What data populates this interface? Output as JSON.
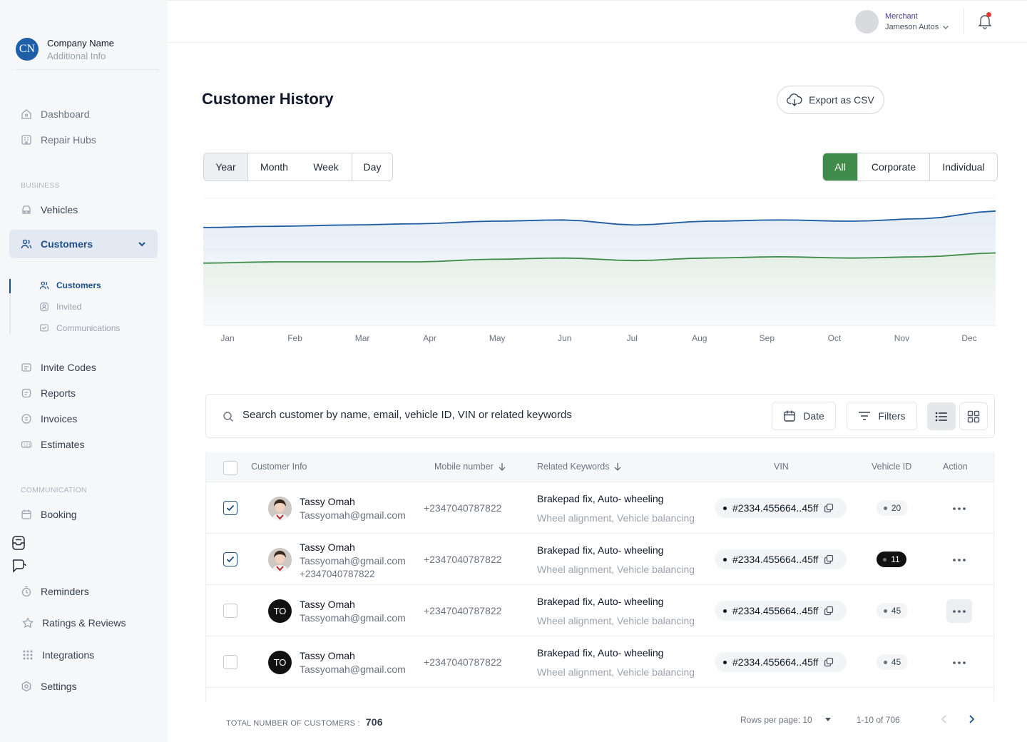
{
  "company": {
    "initials": "CN",
    "name": "Company Name",
    "info": "Additional Info"
  },
  "sidebar": {
    "top": [
      {
        "label": "Dashboard"
      },
      {
        "label": "Repair Hubs"
      }
    ],
    "business_heading": "BUSINESS",
    "business": [
      {
        "label": "Vehicles"
      },
      {
        "label": "Customers"
      }
    ],
    "customers_sub": [
      {
        "label": "Customers"
      },
      {
        "label": "Invited"
      },
      {
        "label": "Communications"
      }
    ],
    "more": [
      {
        "label": "Invite Codes"
      },
      {
        "label": "Reports"
      },
      {
        "label": "Invoices"
      },
      {
        "label": "Estimates"
      }
    ],
    "communication_heading": "COMMUNICATION",
    "communication": [
      {
        "label": "Booking"
      },
      {
        "label": "Reminders"
      },
      {
        "label": "Ratings & Reviews"
      },
      {
        "label": "Integrations"
      },
      {
        "label": "Settings"
      }
    ]
  },
  "header": {
    "role": "Merchant",
    "merchant_name": "Jameson Autos"
  },
  "page": {
    "title": "Customer History",
    "export_label": "Export as CSV"
  },
  "period_tabs": [
    {
      "label": "Year"
    },
    {
      "label": "Month"
    },
    {
      "label": "Week"
    },
    {
      "label": "Day"
    }
  ],
  "period_selected": "Year",
  "type_tabs": [
    {
      "label": "All"
    },
    {
      "label": "Corporate"
    },
    {
      "label": "Individual"
    }
  ],
  "type_selected": "All",
  "colors": {
    "accent_blue": "#1e5fa8",
    "series_blue": "#1e5ba0",
    "series_green": "#3f8c4a",
    "active_green": "#3f8c4a",
    "nav_active": "#1e4e8c"
  },
  "chart_data": {
    "type": "area",
    "x": [
      "Jan",
      "Feb",
      "Mar",
      "Apr",
      "May",
      "Jun",
      "Jul",
      "Aug",
      "Sep",
      "Oct",
      "Nov",
      "Dec"
    ],
    "ylim": [
      0,
      100
    ],
    "grid": true,
    "series": [
      {
        "values": [
          77,
          78,
          79,
          80,
          82,
          83,
          79,
          82,
          83,
          82,
          84,
          90
        ]
      },
      {
        "values": [
          49,
          50,
          50,
          50,
          52,
          53,
          51,
          53,
          54,
          53,
          54,
          57
        ]
      }
    ]
  },
  "search": {
    "placeholder": "Search customer by name, email, vehicle ID, VIN or related keywords",
    "date_label": "Date",
    "filters_label": "Filters"
  },
  "table": {
    "columns": {
      "info": "Customer Info",
      "mobile": "Mobile number",
      "keywords": "Related Keywords",
      "vin": "VIN",
      "vehicle_id": "Vehicle ID",
      "action": "Action"
    },
    "rows": [
      {
        "checked": true,
        "avatar": "photo",
        "initials": "",
        "name": "Tassy Omah",
        "email": "Tassyomah@gmail.com",
        "extra": "",
        "phone": "+2347040787822",
        "kw1": "Brakepad fix, Auto- wheeling",
        "kw2": "Wheel alignment, Vehicle balancing",
        "vin": "#2334.455664..45ff",
        "vehicle_id": "20",
        "vid_dark": false,
        "more_active": false
      },
      {
        "checked": true,
        "avatar": "photo",
        "initials": "",
        "name": "Tassy Omah",
        "email": "Tassyomah@gmail.com",
        "extra": "+2347040787822",
        "phone": "+2347040787822",
        "kw1": "Brakepad fix, Auto- wheeling",
        "kw2": "Wheel alignment, Vehicle balancing",
        "vin": "#2334.455664..45ff",
        "vehicle_id": "11",
        "vid_dark": true,
        "more_active": false
      },
      {
        "checked": false,
        "avatar": "initials",
        "initials": "TO",
        "name": "Tassy Omah",
        "email": "Tassyomah@gmail.com",
        "extra": "",
        "phone": "+2347040787822",
        "kw1": "Brakepad fix, Auto- wheeling",
        "kw2": "Wheel alignment, Vehicle balancing",
        "vin": "#2334.455664..45ff",
        "vehicle_id": "45",
        "vid_dark": false,
        "more_active": true
      },
      {
        "checked": false,
        "avatar": "initials",
        "initials": "TO",
        "name": "Tassy Omah",
        "email": "Tassyomah@gmail.com",
        "extra": "",
        "phone": "+2347040787822",
        "kw1": "Brakepad fix, Auto- wheeling",
        "kw2": "Wheel alignment, Vehicle balancing",
        "vin": "#2334.455664..45ff",
        "vehicle_id": "45",
        "vid_dark": false,
        "more_active": false
      }
    ]
  },
  "footer": {
    "total_label": "TOTAL NUMBER OF CUSTOMERS :",
    "total": "706",
    "rows_per_page": "Rows per page: 10",
    "range": "1-10 of 706"
  }
}
